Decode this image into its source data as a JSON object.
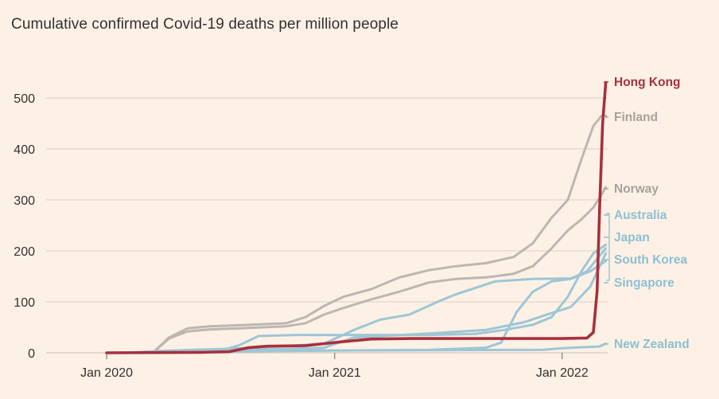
{
  "chart_data": {
    "type": "line",
    "title": "Cumulative confirmed Covid-19 deaths per million people",
    "xlabel": "",
    "ylabel": "",
    "x_ticks": [
      "Jan 2020",
      "Jan 2021",
      "Jan 2022"
    ],
    "x_tick_dates": [
      "2020-01-01",
      "2021-01-01",
      "2022-01-01"
    ],
    "xlim": [
      "2019-10-01",
      "2022-03-15"
    ],
    "y_ticks": [
      0,
      100,
      200,
      300,
      400,
      500
    ],
    "ylim": [
      0,
      560
    ],
    "grid": true,
    "legend": "labels at right end of lines",
    "colors": {
      "highlight": "#a8303c",
      "nordic": "#bdb6b1",
      "asia_pacific": "#9ec6d5",
      "label_highlight": "#a8303c",
      "label_nordic": "#a8a19c",
      "label_asia_pacific": "#8cc0d3",
      "grid": "#dcd0c6",
      "text": "#33302e"
    },
    "series": [
      {
        "name": "Finland",
        "color_key": "nordic",
        "points": [
          [
            "2020-03-15",
            0
          ],
          [
            "2020-04-10",
            30
          ],
          [
            "2020-05-10",
            48
          ],
          [
            "2020-06-15",
            52
          ],
          [
            "2020-08-01",
            54
          ],
          [
            "2020-10-15",
            58
          ],
          [
            "2020-11-15",
            70
          ],
          [
            "2020-12-15",
            92
          ],
          [
            "2021-01-15",
            110
          ],
          [
            "2021-03-01",
            125
          ],
          [
            "2021-04-15",
            148
          ],
          [
            "2021-06-01",
            162
          ],
          [
            "2021-07-15",
            170
          ],
          [
            "2021-09-01",
            176
          ],
          [
            "2021-10-15",
            188
          ],
          [
            "2021-11-15",
            215
          ],
          [
            "2021-12-15",
            265
          ],
          [
            "2022-01-10",
            300
          ],
          [
            "2022-02-01",
            380
          ],
          [
            "2022-02-20",
            445
          ],
          [
            "2022-03-05",
            465
          ],
          [
            "2022-03-12",
            465
          ]
        ]
      },
      {
        "name": "Norway",
        "color_key": "nordic",
        "points": [
          [
            "2020-03-15",
            0
          ],
          [
            "2020-04-10",
            28
          ],
          [
            "2020-05-10",
            42
          ],
          [
            "2020-06-15",
            46
          ],
          [
            "2020-08-01",
            48
          ],
          [
            "2020-10-15",
            52
          ],
          [
            "2020-11-15",
            58
          ],
          [
            "2020-12-15",
            75
          ],
          [
            "2021-01-15",
            88
          ],
          [
            "2021-03-01",
            105
          ],
          [
            "2021-04-15",
            120
          ],
          [
            "2021-06-01",
            138
          ],
          [
            "2021-07-15",
            145
          ],
          [
            "2021-09-01",
            148
          ],
          [
            "2021-10-15",
            155
          ],
          [
            "2021-11-15",
            170
          ],
          [
            "2021-12-15",
            205
          ],
          [
            "2022-01-10",
            240
          ],
          [
            "2022-02-01",
            262
          ],
          [
            "2022-02-20",
            285
          ],
          [
            "2022-03-05",
            310
          ],
          [
            "2022-03-12",
            325
          ]
        ]
      },
      {
        "name": "Hong Kong",
        "color_key": "highlight",
        "points": [
          [
            "2020-01-01",
            0
          ],
          [
            "2020-06-01",
            1
          ],
          [
            "2020-07-15",
            2
          ],
          [
            "2020-08-15",
            10
          ],
          [
            "2020-09-15",
            13
          ],
          [
            "2020-11-15",
            14
          ],
          [
            "2020-12-15",
            18
          ],
          [
            "2021-01-15",
            22
          ],
          [
            "2021-03-01",
            27
          ],
          [
            "2021-05-01",
            28
          ],
          [
            "2021-09-01",
            28
          ],
          [
            "2022-01-01",
            28
          ],
          [
            "2022-02-10",
            29
          ],
          [
            "2022-02-20",
            40
          ],
          [
            "2022-02-26",
            120
          ],
          [
            "2022-03-02",
            280
          ],
          [
            "2022-03-07",
            450
          ],
          [
            "2022-03-12",
            530
          ]
        ]
      },
      {
        "name": "Australia",
        "color_key": "asia_pacific",
        "points": [
          [
            "2020-03-01",
            0
          ],
          [
            "2020-04-15",
            3
          ],
          [
            "2020-07-01",
            4
          ],
          [
            "2020-08-01",
            15
          ],
          [
            "2020-09-01",
            33
          ],
          [
            "2020-11-01",
            35
          ],
          [
            "2021-06-01",
            35
          ],
          [
            "2021-08-15",
            37
          ],
          [
            "2021-10-01",
            45
          ],
          [
            "2021-11-15",
            55
          ],
          [
            "2021-12-15",
            70
          ],
          [
            "2022-01-10",
            110
          ],
          [
            "2022-02-01",
            160
          ],
          [
            "2022-02-20",
            195
          ],
          [
            "2022-03-12",
            212
          ]
        ]
      },
      {
        "name": "Japan",
        "color_key": "asia_pacific",
        "points": [
          [
            "2020-02-01",
            0
          ],
          [
            "2020-05-01",
            5
          ],
          [
            "2020-09-01",
            10
          ],
          [
            "2020-12-15",
            18
          ],
          [
            "2021-02-01",
            45
          ],
          [
            "2021-03-15",
            65
          ],
          [
            "2021-05-01",
            75
          ],
          [
            "2021-06-15",
            100
          ],
          [
            "2021-07-15",
            115
          ],
          [
            "2021-09-15",
            140
          ],
          [
            "2021-11-15",
            145
          ],
          [
            "2022-01-15",
            146
          ],
          [
            "2022-02-10",
            160
          ],
          [
            "2022-03-12",
            205
          ]
        ]
      },
      {
        "name": "South Korea",
        "color_key": "asia_pacific",
        "points": [
          [
            "2020-02-01",
            0
          ],
          [
            "2020-04-01",
            4
          ],
          [
            "2020-09-01",
            6
          ],
          [
            "2020-12-15",
            10
          ],
          [
            "2021-02-01",
            30
          ],
          [
            "2021-06-01",
            38
          ],
          [
            "2021-09-01",
            45
          ],
          [
            "2021-11-01",
            60
          ],
          [
            "2021-12-15",
            78
          ],
          [
            "2022-01-15",
            90
          ],
          [
            "2022-02-15",
            130
          ],
          [
            "2022-03-12",
            195
          ]
        ]
      },
      {
        "name": "Singapore",
        "color_key": "asia_pacific",
        "points": [
          [
            "2020-03-01",
            0
          ],
          [
            "2020-05-01",
            2
          ],
          [
            "2021-06-01",
            6
          ],
          [
            "2021-09-01",
            10
          ],
          [
            "2021-09-25",
            20
          ],
          [
            "2021-10-20",
            80
          ],
          [
            "2021-11-15",
            120
          ],
          [
            "2021-12-15",
            140
          ],
          [
            "2022-01-15",
            145
          ],
          [
            "2022-02-15",
            160
          ],
          [
            "2022-03-12",
            180
          ]
        ]
      },
      {
        "name": "New Zealand",
        "color_key": "asia_pacific",
        "points": [
          [
            "2020-03-01",
            0
          ],
          [
            "2020-05-01",
            4
          ],
          [
            "2021-06-01",
            5
          ],
          [
            "2021-12-01",
            6
          ],
          [
            "2022-01-01",
            9
          ],
          [
            "2022-02-01",
            11
          ],
          [
            "2022-03-01",
            12
          ],
          [
            "2022-03-12",
            18
          ]
        ]
      }
    ]
  }
}
